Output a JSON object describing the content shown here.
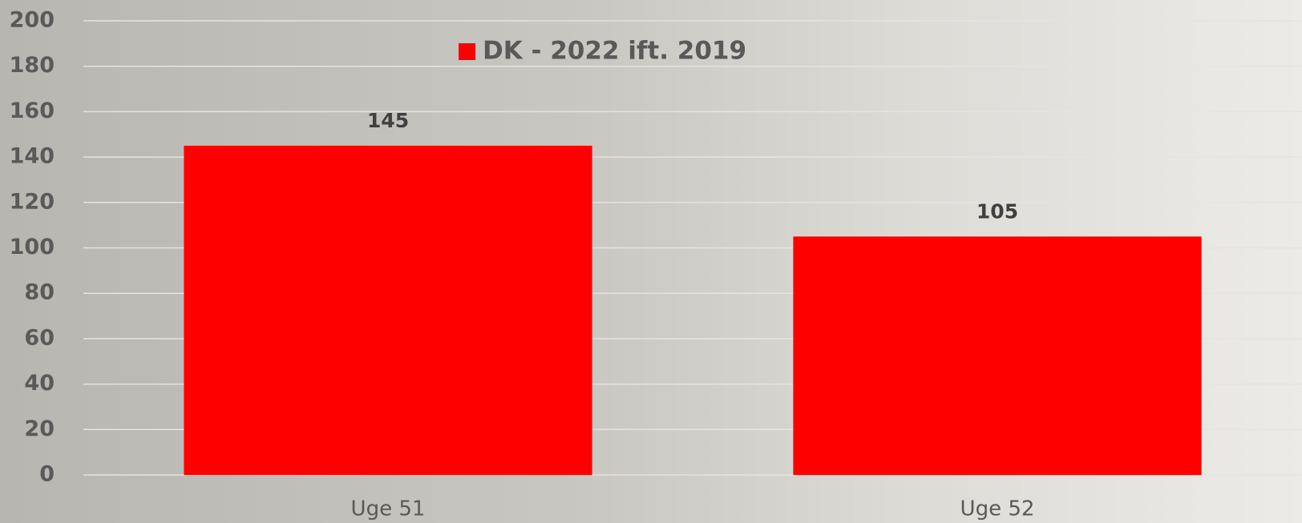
{
  "chart_data": {
    "type": "bar",
    "categories": [
      "Uge 51",
      "Uge 52"
    ],
    "series": [
      {
        "name": "DK - 2022 ift. 2019",
        "color": "#ff0000",
        "values": [
          145,
          105
        ]
      }
    ],
    "ylim": [
      0,
      200
    ],
    "yticks": [
      0,
      20,
      40,
      60,
      80,
      100,
      120,
      140,
      160,
      180,
      200
    ],
    "grid": true,
    "legend": "top",
    "data_labels": true
  }
}
